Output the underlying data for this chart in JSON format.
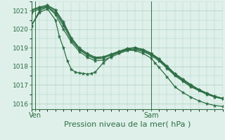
{
  "background_color": "#dff0ea",
  "grid_color": "#aacfbf",
  "line_color": "#2d6e45",
  "xlabel": "Pression niveau de la mer( hPa )",
  "xlabel_fontsize": 8,
  "yticks": [
    1016,
    1017,
    1018,
    1019,
    1020,
    1021
  ],
  "ylim": [
    1015.7,
    1021.5
  ],
  "xlim": [
    0,
    48
  ],
  "ven_x": 1,
  "sam_x": 30,
  "series": [
    {
      "x": [
        0,
        2,
        4,
        6,
        8,
        10,
        12,
        14,
        16,
        18,
        20,
        22,
        24,
        26,
        28,
        30,
        32,
        34,
        36,
        38,
        40,
        42,
        44,
        46,
        48
      ],
      "y": [
        1020.2,
        1021.0,
        1021.2,
        1020.8,
        1020.0,
        1019.3,
        1018.8,
        1018.5,
        1018.3,
        1018.35,
        1018.5,
        1018.7,
        1018.85,
        1018.9,
        1018.8,
        1018.6,
        1018.3,
        1017.9,
        1017.5,
        1017.2,
        1016.9,
        1016.7,
        1016.5,
        1016.35,
        1016.25
      ]
    },
    {
      "x": [
        0,
        2,
        4,
        6,
        8,
        10,
        12,
        14,
        16,
        18,
        20,
        22,
        24,
        26,
        28,
        30,
        32,
        34,
        36,
        38,
        40,
        42,
        44,
        46,
        48
      ],
      "y": [
        1020.9,
        1021.1,
        1021.2,
        1020.9,
        1020.2,
        1019.4,
        1018.9,
        1018.6,
        1018.4,
        1018.45,
        1018.6,
        1018.75,
        1018.9,
        1018.95,
        1018.85,
        1018.65,
        1018.35,
        1017.95,
        1017.55,
        1017.25,
        1016.95,
        1016.72,
        1016.52,
        1016.37,
        1016.27
      ]
    },
    {
      "x": [
        0,
        2,
        4,
        6,
        8,
        10,
        12,
        14,
        16,
        18,
        20,
        22,
        24,
        26,
        28,
        30,
        32,
        34,
        36,
        38,
        40,
        42,
        44,
        46,
        48
      ],
      "y": [
        1021.0,
        1021.15,
        1021.25,
        1021.0,
        1020.3,
        1019.5,
        1018.95,
        1018.65,
        1018.45,
        1018.5,
        1018.65,
        1018.8,
        1018.95,
        1019.0,
        1018.9,
        1018.7,
        1018.4,
        1018.0,
        1017.6,
        1017.3,
        1017.0,
        1016.75,
        1016.55,
        1016.38,
        1016.28
      ]
    },
    {
      "x": [
        0,
        2,
        4,
        6,
        8,
        10,
        12,
        14,
        16,
        18,
        20,
        22,
        24,
        26,
        28,
        30,
        32,
        34,
        36,
        38,
        40,
        42,
        44,
        46,
        48
      ],
      "y": [
        1021.05,
        1021.2,
        1021.3,
        1021.05,
        1020.4,
        1019.55,
        1019.0,
        1018.7,
        1018.5,
        1018.52,
        1018.67,
        1018.82,
        1018.97,
        1019.02,
        1018.92,
        1018.72,
        1018.42,
        1018.02,
        1017.62,
        1017.32,
        1017.02,
        1016.77,
        1016.57,
        1016.4,
        1016.29
      ]
    },
    {
      "x": [
        0,
        2,
        4,
        6,
        7,
        8,
        9,
        10,
        11,
        12,
        13,
        14,
        15,
        16,
        18,
        20,
        22,
        24,
        26,
        28,
        30,
        31,
        32,
        34,
        36,
        38,
        40,
        42,
        44,
        46,
        48
      ],
      "y": [
        1020.2,
        1020.9,
        1021.1,
        1020.5,
        1019.6,
        1019.0,
        1018.3,
        1017.85,
        1017.7,
        1017.65,
        1017.62,
        1017.6,
        1017.62,
        1017.7,
        1018.2,
        1018.55,
        1018.8,
        1018.9,
        1018.85,
        1018.7,
        1018.45,
        1018.2,
        1017.95,
        1017.45,
        1016.9,
        1016.6,
        1016.35,
        1016.15,
        1016.0,
        1015.9,
        1015.85
      ]
    }
  ]
}
